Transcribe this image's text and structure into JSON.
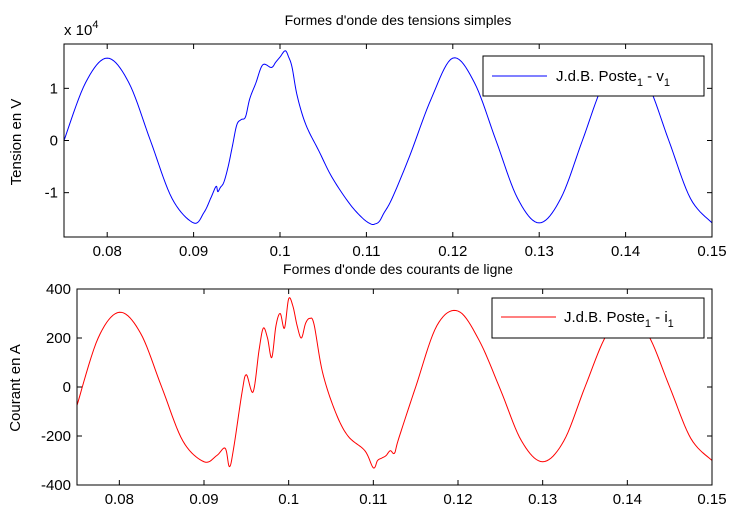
{
  "chart_data": [
    {
      "type": "line",
      "title": "Formes d'onde des tensions simples",
      "xlabel": "",
      "ylabel": "Tension en V",
      "y_exponent_label": "x 10",
      "y_exponent_power": "4",
      "xlim": [
        0.075,
        0.15
      ],
      "ylim": [
        -1.85,
        1.85
      ],
      "xticks": [
        0.08,
        0.09,
        0.1,
        0.11,
        0.12,
        0.13,
        0.14,
        0.15
      ],
      "xtick_labels": [
        "0.08",
        "0.09",
        "0.1",
        "0.11",
        "0.12",
        "0.13",
        "0.14",
        "0.15"
      ],
      "yticks": [
        -1,
        0,
        1
      ],
      "ytick_labels": [
        "-1",
        "0",
        "1"
      ],
      "grid": false,
      "legend": "top-right",
      "series": [
        {
          "name": "J.d.B. Poste1 - v1",
          "legend_main": "J.d.B. Poste",
          "legend_sub1": "1",
          "legend_sep": " - v",
          "legend_sub2": "1",
          "color": "#0000ff",
          "x": [
            0.075,
            0.0775,
            0.08,
            0.0825,
            0.085,
            0.0875,
            0.09,
            0.0912,
            0.092,
            0.0926,
            0.0928,
            0.0931,
            0.0935,
            0.094,
            0.0945,
            0.095,
            0.0955,
            0.096,
            0.0965,
            0.0972,
            0.098,
            0.099,
            0.0995,
            0.1,
            0.1006,
            0.101,
            0.1014,
            0.102,
            0.103,
            0.1045,
            0.106,
            0.108,
            0.1095,
            0.1105,
            0.111,
            0.1115,
            0.112,
            0.113,
            0.115,
            0.1175,
            0.12,
            0.1225,
            0.125,
            0.1275,
            0.13,
            0.1325,
            0.135,
            0.1375,
            0.14,
            0.1425,
            0.145,
            0.1475,
            0.15
          ],
          "y": [
            0.0,
            1.11,
            1.58,
            1.11,
            0.0,
            -1.11,
            -1.58,
            -1.38,
            -1.1,
            -0.88,
            -0.98,
            -0.9,
            -0.8,
            -0.5,
            -0.1,
            0.3,
            0.4,
            0.45,
            0.8,
            1.1,
            1.45,
            1.4,
            1.5,
            1.6,
            1.72,
            1.6,
            1.4,
            0.85,
            0.3,
            -0.2,
            -0.7,
            -1.2,
            -1.48,
            -1.6,
            -1.6,
            -1.55,
            -1.4,
            -1.1,
            -0.3,
            0.8,
            1.58,
            1.11,
            0.0,
            -1.11,
            -1.58,
            -1.11,
            0.0,
            1.11,
            1.58,
            1.11,
            0.0,
            -1.11,
            -1.58
          ]
        }
      ]
    },
    {
      "type": "line",
      "title": "Formes d'onde des courants de ligne",
      "xlabel": "",
      "ylabel": "Courant en A",
      "xlim": [
        0.075,
        0.15
      ],
      "ylim": [
        -400,
        400
      ],
      "xticks": [
        0.08,
        0.09,
        0.1,
        0.11,
        0.12,
        0.13,
        0.14,
        0.15
      ],
      "xtick_labels": [
        "0.08",
        "0.09",
        "0.1",
        "0.11",
        "0.12",
        "0.13",
        "0.14",
        "0.15"
      ],
      "yticks": [
        -400,
        -200,
        0,
        200,
        400
      ],
      "ytick_labels": [
        "-400",
        "-200",
        "0",
        "200",
        "400"
      ],
      "grid": false,
      "legend": "top-right",
      "series": [
        {
          "name": "J.d.B. Poste1 - i1",
          "legend_main": "J.d.B. Poste",
          "legend_sub1": "1",
          "legend_sep": " - i",
          "legend_sub2": "1",
          "color": "#ff0000",
          "x": [
            0.075,
            0.0775,
            0.08,
            0.0825,
            0.085,
            0.0875,
            0.09,
            0.0915,
            0.0925,
            0.093,
            0.0935,
            0.0945,
            0.095,
            0.0958,
            0.0965,
            0.097,
            0.0975,
            0.098,
            0.0985,
            0.099,
            0.0995,
            0.1,
            0.1005,
            0.101,
            0.1015,
            0.102,
            0.1025,
            0.103,
            0.104,
            0.1055,
            0.107,
            0.109,
            0.11,
            0.1105,
            0.111,
            0.1115,
            0.112,
            0.1125,
            0.113,
            0.115,
            0.1175,
            0.12,
            0.1225,
            0.125,
            0.1275,
            0.13,
            0.1325,
            0.135,
            0.1375,
            0.14,
            0.1425,
            0.145,
            0.1475,
            0.15
          ],
          "y": [
            -75,
            200,
            305,
            220,
            0,
            -220,
            -305,
            -280,
            -250,
            -325,
            -250,
            -20,
            50,
            -20,
            150,
            240,
            200,
            120,
            250,
            300,
            240,
            360,
            330,
            250,
            200,
            260,
            280,
            255,
            60,
            -100,
            -200,
            -260,
            -330,
            -300,
            -290,
            -280,
            -260,
            -270,
            -210,
            0,
            250,
            310,
            190,
            -10,
            -220,
            -305,
            -220,
            0,
            210,
            300,
            210,
            0,
            -210,
            -300
          ]
        }
      ]
    }
  ]
}
